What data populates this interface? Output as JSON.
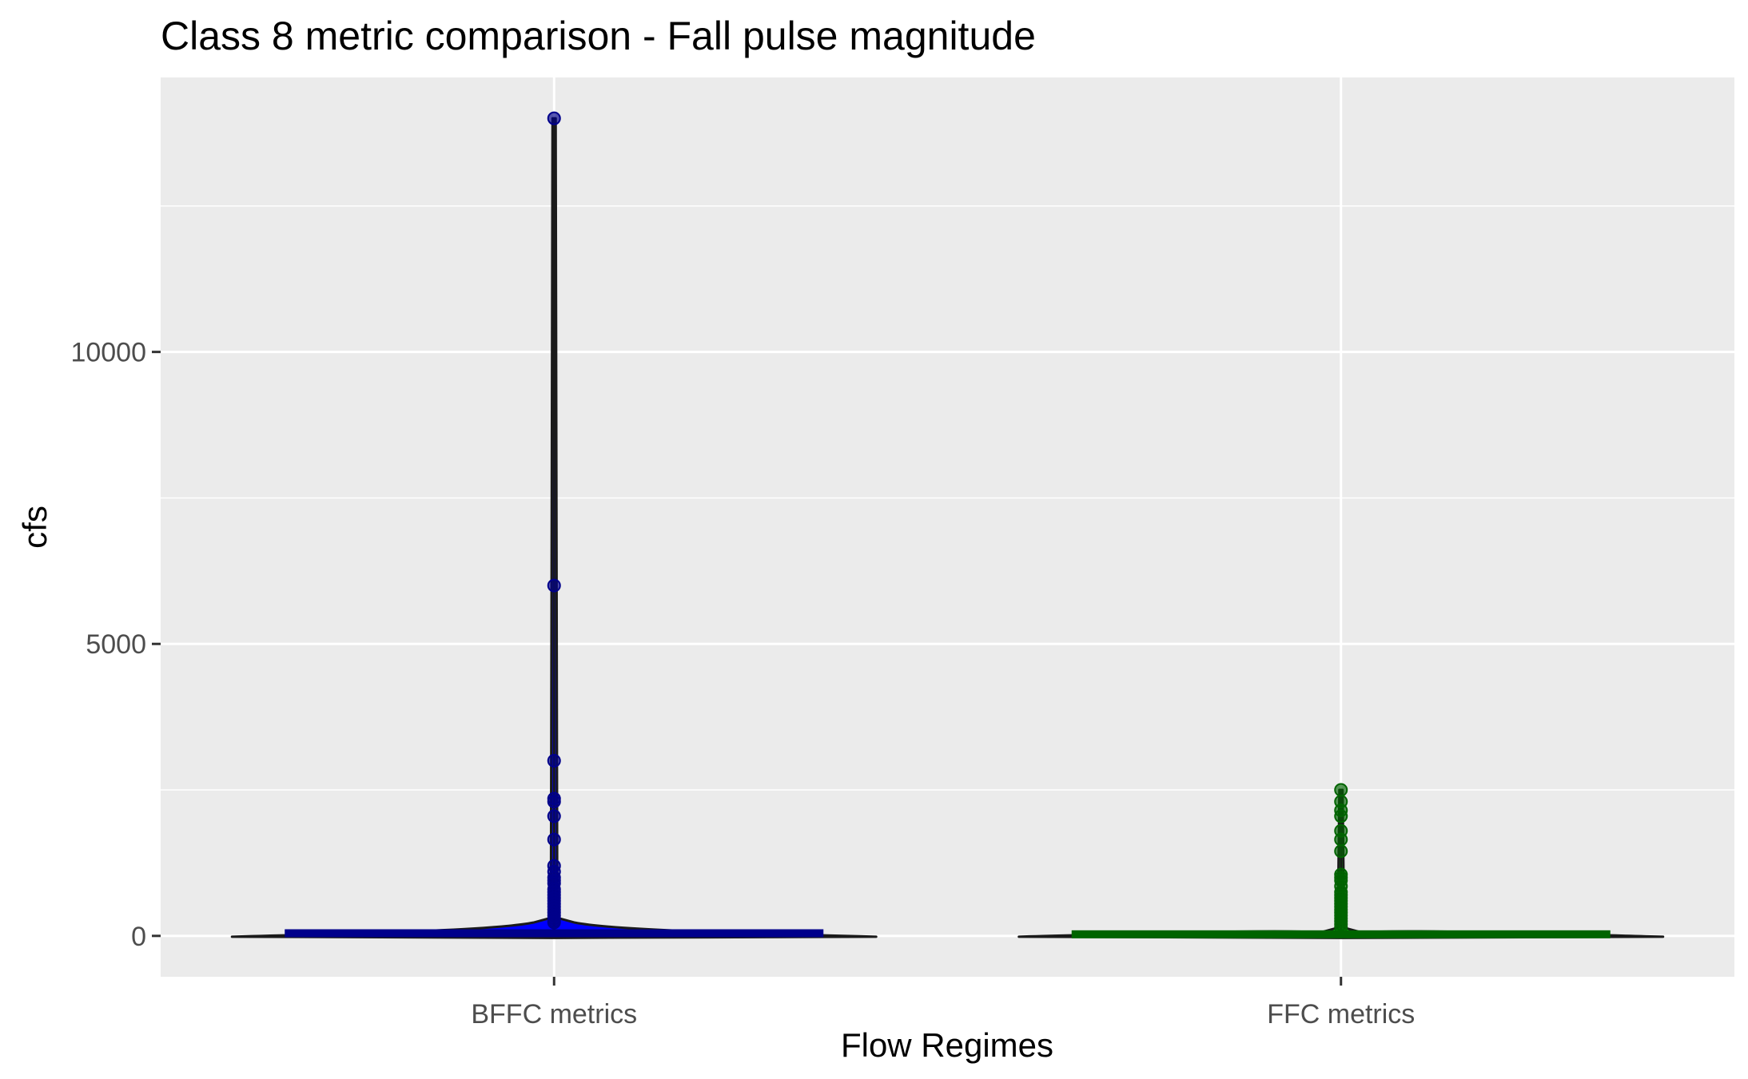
{
  "chart_data": {
    "type": "violin",
    "title": "Class 8 metric comparison - Fall pulse magnitude",
    "xlabel": "Flow Regimes",
    "ylabel": "cfs",
    "categories": [
      "BFFC metrics",
      "FFC metrics"
    ],
    "y_ticks": [
      0,
      5000,
      10000
    ],
    "y_tick_labels": [
      "0",
      "5000",
      "10000"
    ],
    "ylim": [
      -700,
      14700
    ],
    "grid": true,
    "legend": "none",
    "series": [
      {
        "category": "BFFC metrics",
        "fill_color": "#0000ff",
        "box_color": "#00008b",
        "point_color": "#00008b",
        "whisker_low": 0,
        "whisker_high": 14000,
        "box": [
          0,
          20,
          100
        ],
        "outliers": [
          14000,
          6000,
          3000,
          2350,
          2300,
          2050,
          1650,
          1200,
          1100,
          1000,
          950,
          900,
          800,
          750,
          700,
          650,
          600,
          550,
          500,
          450,
          400,
          350,
          300,
          260,
          230
        ]
      },
      {
        "category": "FFC metrics",
        "fill_color": "#00ff00",
        "box_color": "#006400",
        "point_color": "#006400",
        "whisker_low": 0,
        "whisker_high": 2500,
        "box": [
          0,
          5,
          20
        ],
        "outliers": [
          2500,
          2300,
          2150,
          2050,
          1800,
          1650,
          1450,
          1050,
          1000,
          950,
          850,
          750,
          700,
          650,
          600,
          550,
          500,
          450,
          400,
          350,
          300,
          250,
          200,
          150
        ]
      }
    ]
  }
}
